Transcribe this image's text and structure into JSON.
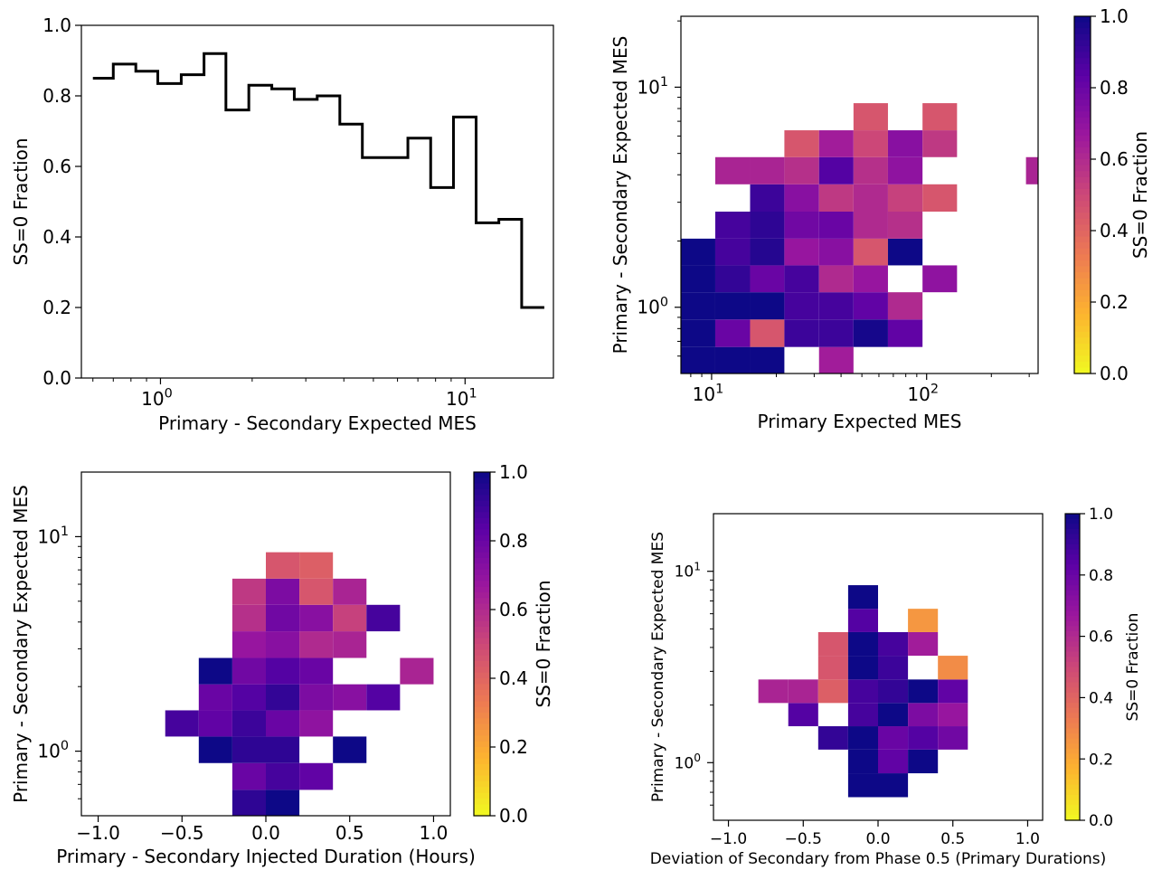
{
  "colorbar_colors": [
    "#f0f921",
    "#fdb42f",
    "#ed7953",
    "#cc4778",
    "#9c179e",
    "#5c01a6",
    "#0d0887"
  ],
  "chart_data": [
    {
      "id": "a",
      "type": "line",
      "step": true,
      "xscale": "log",
      "xlim": [
        0.55,
        19.5
      ],
      "ylim": [
        0,
        1
      ],
      "xlabel": "Primary - Secondary Expected MES",
      "ylabel": "SS=0 Fraction",
      "grid": false,
      "yticks": [
        "0.0",
        "0.2",
        "0.4",
        "0.6",
        "0.8",
        "1.0"
      ],
      "xticks": [
        {
          "base": "10",
          "exp": "0",
          "v": 1
        },
        {
          "base": "10",
          "exp": "1",
          "v": 10
        }
      ],
      "bin_edges": [
        0.6,
        0.7,
        0.83,
        0.98,
        1.17,
        1.39,
        1.64,
        1.95,
        2.32,
        2.75,
        3.27,
        3.88,
        4.6,
        5.47,
        6.49,
        7.71,
        9.16,
        10.87,
        12.91,
        15.34,
        18.2
      ],
      "values": [
        0.85,
        0.89,
        0.87,
        0.835,
        0.86,
        0.92,
        0.76,
        0.83,
        0.82,
        0.79,
        0.8,
        0.72,
        0.625,
        0.625,
        0.68,
        0.54,
        0.74,
        0.44,
        0.45,
        0.2
      ]
    },
    {
      "id": "b",
      "type": "heatmap",
      "xscale": "log",
      "yscale": "log",
      "xlim": [
        7.2,
        330
      ],
      "ylim": [
        0.5,
        21
      ],
      "xlabel": "Primary Expected MES",
      "ylabel": "Primary - Secondary Expected MES",
      "colorbar_label": "SS=0 Fraction",
      "clim": [
        0,
        1
      ],
      "colormap": "plasma",
      "colorbar_ticks": [
        "0.0",
        "0.2",
        "0.4",
        "0.6",
        "0.8",
        "1.0"
      ],
      "xticks": [
        {
          "base": "10",
          "exp": "1",
          "v": 10
        },
        {
          "base": "10",
          "exp": "2",
          "v": 100
        }
      ],
      "yticks": [
        {
          "base": "10",
          "exp": "0",
          "v": 1
        },
        {
          "base": "10",
          "exp": "1",
          "v": 10
        }
      ],
      "x_edges": [
        7.2,
        10.4,
        15.1,
        21.8,
        31.6,
        45.7,
        66.1,
        95.7,
        138.5,
        200.3,
        289.8,
        419
      ],
      "y_edges": [
        0.5,
        0.66,
        0.88,
        1.17,
        1.55,
        2.05,
        2.72,
        3.62,
        4.81,
        6.37,
        8.46,
        11.2,
        14.9,
        19.8
      ],
      "cells": [
        {
          "i": 0,
          "j": 0,
          "v": 1.0
        },
        {
          "i": 1,
          "j": 0,
          "v": 1.0
        },
        {
          "i": 2,
          "j": 0,
          "v": 1.0
        },
        {
          "i": 4,
          "j": 0,
          "v": 0.65
        },
        {
          "i": 0,
          "j": 1,
          "v": 1.0
        },
        {
          "i": 1,
          "j": 1,
          "v": 0.8
        },
        {
          "i": 2,
          "j": 1,
          "v": 0.45
        },
        {
          "i": 3,
          "j": 1,
          "v": 0.9
        },
        {
          "i": 4,
          "j": 1,
          "v": 0.9
        },
        {
          "i": 5,
          "j": 1,
          "v": 0.98
        },
        {
          "i": 6,
          "j": 1,
          "v": 0.82
        },
        {
          "i": 0,
          "j": 2,
          "v": 1.0
        },
        {
          "i": 1,
          "j": 2,
          "v": 1.0
        },
        {
          "i": 2,
          "j": 2,
          "v": 1.0
        },
        {
          "i": 3,
          "j": 2,
          "v": 0.88
        },
        {
          "i": 4,
          "j": 2,
          "v": 0.88
        },
        {
          "i": 5,
          "j": 2,
          "v": 0.82
        },
        {
          "i": 6,
          "j": 2,
          "v": 0.6
        },
        {
          "i": 0,
          "j": 3,
          "v": 1.0
        },
        {
          "i": 1,
          "j": 3,
          "v": 0.92
        },
        {
          "i": 2,
          "j": 3,
          "v": 0.8
        },
        {
          "i": 3,
          "j": 3,
          "v": 0.88
        },
        {
          "i": 4,
          "j": 3,
          "v": 0.6
        },
        {
          "i": 5,
          "j": 3,
          "v": 0.68
        },
        {
          "i": 7,
          "j": 3,
          "v": 0.7
        },
        {
          "i": 0,
          "j": 4,
          "v": 1.0
        },
        {
          "i": 1,
          "j": 4,
          "v": 0.88
        },
        {
          "i": 2,
          "j": 4,
          "v": 0.95
        },
        {
          "i": 3,
          "j": 4,
          "v": 0.68
        },
        {
          "i": 4,
          "j": 4,
          "v": 0.72
        },
        {
          "i": 5,
          "j": 4,
          "v": 0.45
        },
        {
          "i": 6,
          "j": 4,
          "v": 1.0
        },
        {
          "i": 1,
          "j": 5,
          "v": 0.88
        },
        {
          "i": 2,
          "j": 5,
          "v": 0.93
        },
        {
          "i": 3,
          "j": 5,
          "v": 0.78
        },
        {
          "i": 4,
          "j": 5,
          "v": 0.8
        },
        {
          "i": 5,
          "j": 5,
          "v": 0.6
        },
        {
          "i": 6,
          "j": 5,
          "v": 0.58
        },
        {
          "i": 2,
          "j": 6,
          "v": 0.9
        },
        {
          "i": 3,
          "j": 6,
          "v": 0.72
        },
        {
          "i": 4,
          "j": 6,
          "v": 0.55
        },
        {
          "i": 5,
          "j": 6,
          "v": 0.6
        },
        {
          "i": 6,
          "j": 6,
          "v": 0.52
        },
        {
          "i": 7,
          "j": 6,
          "v": 0.45
        },
        {
          "i": 1,
          "j": 7,
          "v": 0.62
        },
        {
          "i": 2,
          "j": 7,
          "v": 0.62
        },
        {
          "i": 3,
          "j": 7,
          "v": 0.58
        },
        {
          "i": 4,
          "j": 7,
          "v": 0.85
        },
        {
          "i": 5,
          "j": 7,
          "v": 0.58
        },
        {
          "i": 6,
          "j": 7,
          "v": 0.7
        },
        {
          "i": 10,
          "j": 7,
          "v": 0.62
        },
        {
          "i": 3,
          "j": 8,
          "v": 0.45
        },
        {
          "i": 4,
          "j": 8,
          "v": 0.65
        },
        {
          "i": 5,
          "j": 8,
          "v": 0.5
        },
        {
          "i": 6,
          "j": 8,
          "v": 0.72
        },
        {
          "i": 7,
          "j": 8,
          "v": 0.55
        },
        {
          "i": 5,
          "j": 9,
          "v": 0.45
        },
        {
          "i": 7,
          "j": 9,
          "v": 0.45
        }
      ]
    },
    {
      "id": "c",
      "type": "heatmap",
      "xscale": "linear",
      "yscale": "log",
      "xlim": [
        -1.1,
        1.1
      ],
      "ylim": [
        0.5,
        20
      ],
      "xlabel": "Primary - Secondary Injected Duration (Hours)",
      "ylabel": "Primary - Secondary Expected MES",
      "colorbar_label": "SS=0 Fraction",
      "clim": [
        0,
        1
      ],
      "colormap": "plasma",
      "colorbar_ticks": [
        "0.0",
        "0.2",
        "0.4",
        "0.6",
        "0.8",
        "1.0"
      ],
      "xticks": [
        "-1.0",
        "-0.5",
        "0.0",
        "0.5",
        "1.0"
      ],
      "yticks": [
        {
          "base": "10",
          "exp": "0",
          "v": 1
        },
        {
          "base": "10",
          "exp": "1",
          "v": 10
        }
      ],
      "x_edges": [
        -0.6,
        -0.4,
        -0.2,
        0.0,
        0.2,
        0.4,
        0.6,
        0.8,
        1.0
      ],
      "y_edges": [
        0.5,
        0.66,
        0.88,
        1.17,
        1.55,
        2.05,
        2.72,
        3.62,
        4.81,
        6.37,
        8.46,
        11.2,
        14.9,
        19.8
      ],
      "cells": [
        {
          "i": 2,
          "j": 0,
          "v": 0.93
        },
        {
          "i": 3,
          "j": 0,
          "v": 1.0
        },
        {
          "i": 2,
          "j": 1,
          "v": 0.8
        },
        {
          "i": 3,
          "j": 1,
          "v": 0.88
        },
        {
          "i": 4,
          "j": 1,
          "v": 0.82
        },
        {
          "i": 1,
          "j": 2,
          "v": 1.0
        },
        {
          "i": 2,
          "j": 2,
          "v": 0.93
        },
        {
          "i": 3,
          "j": 2,
          "v": 0.93
        },
        {
          "i": 5,
          "j": 2,
          "v": 1.0
        },
        {
          "i": 0,
          "j": 3,
          "v": 0.88
        },
        {
          "i": 1,
          "j": 3,
          "v": 0.82
        },
        {
          "i": 2,
          "j": 3,
          "v": 0.9
        },
        {
          "i": 3,
          "j": 3,
          "v": 0.8
        },
        {
          "i": 4,
          "j": 3,
          "v": 0.7
        },
        {
          "i": 1,
          "j": 4,
          "v": 0.8
        },
        {
          "i": 2,
          "j": 4,
          "v": 0.85
        },
        {
          "i": 3,
          "j": 4,
          "v": 0.92
        },
        {
          "i": 4,
          "j": 4,
          "v": 0.75
        },
        {
          "i": 5,
          "j": 4,
          "v": 0.72
        },
        {
          "i": 6,
          "j": 4,
          "v": 0.85
        },
        {
          "i": 1,
          "j": 5,
          "v": 1.0
        },
        {
          "i": 2,
          "j": 5,
          "v": 0.78
        },
        {
          "i": 3,
          "j": 5,
          "v": 0.85
        },
        {
          "i": 4,
          "j": 5,
          "v": 0.8
        },
        {
          "i": 7,
          "j": 5,
          "v": 0.62
        },
        {
          "i": 2,
          "j": 6,
          "v": 0.68
        },
        {
          "i": 3,
          "j": 6,
          "v": 0.72
        },
        {
          "i": 4,
          "j": 6,
          "v": 0.6
        },
        {
          "i": 5,
          "j": 6,
          "v": 0.62
        },
        {
          "i": 2,
          "j": 7,
          "v": 0.58
        },
        {
          "i": 3,
          "j": 7,
          "v": 0.78
        },
        {
          "i": 4,
          "j": 7,
          "v": 0.72
        },
        {
          "i": 5,
          "j": 7,
          "v": 0.52
        },
        {
          "i": 6,
          "j": 7,
          "v": 0.88
        },
        {
          "i": 2,
          "j": 8,
          "v": 0.55
        },
        {
          "i": 3,
          "j": 8,
          "v": 0.75
        },
        {
          "i": 4,
          "j": 8,
          "v": 0.45
        },
        {
          "i": 5,
          "j": 8,
          "v": 0.62
        },
        {
          "i": 3,
          "j": 9,
          "v": 0.45
        },
        {
          "i": 4,
          "j": 9,
          "v": 0.42
        }
      ]
    },
    {
      "id": "d",
      "type": "heatmap",
      "xscale": "linear",
      "yscale": "log",
      "xlim": [
        -1.1,
        1.1
      ],
      "ylim": [
        0.5,
        20
      ],
      "xlabel": "Deviation of Secondary from Phase 0.5 (Primary Durations)",
      "ylabel": "Primary - Secondary Expected MES",
      "colorbar_label": "SS=0 Fraction",
      "clim": [
        0,
        1
      ],
      "colormap": "plasma",
      "colorbar_ticks": [
        "0.0",
        "0.2",
        "0.4",
        "0.6",
        "0.8",
        "1.0"
      ],
      "xticks": [
        "-1.0",
        "-0.5",
        "0.0",
        "0.5",
        "1.0"
      ],
      "yticks": [
        {
          "base": "10",
          "exp": "0",
          "v": 1
        },
        {
          "base": "10",
          "exp": "1",
          "v": 10
        }
      ],
      "x_edges": [
        -0.8,
        -0.6,
        -0.4,
        -0.2,
        0.0,
        0.2,
        0.4,
        0.6
      ],
      "y_edges": [
        0.5,
        0.66,
        0.88,
        1.17,
        1.55,
        2.05,
        2.72,
        3.62,
        4.81,
        6.37,
        8.46,
        11.2,
        14.9,
        19.8
      ],
      "cells": [
        {
          "i": 3,
          "j": 1,
          "v": 1.0
        },
        {
          "i": 4,
          "j": 1,
          "v": 1.0
        },
        {
          "i": 3,
          "j": 2,
          "v": 1.0
        },
        {
          "i": 4,
          "j": 2,
          "v": 0.82
        },
        {
          "i": 5,
          "j": 2,
          "v": 1.0
        },
        {
          "i": 2,
          "j": 3,
          "v": 0.92
        },
        {
          "i": 3,
          "j": 3,
          "v": 1.0
        },
        {
          "i": 4,
          "j": 3,
          "v": 0.8
        },
        {
          "i": 5,
          "j": 3,
          "v": 0.85
        },
        {
          "i": 6,
          "j": 3,
          "v": 0.78
        },
        {
          "i": 1,
          "j": 4,
          "v": 0.85
        },
        {
          "i": 3,
          "j": 4,
          "v": 0.88
        },
        {
          "i": 4,
          "j": 4,
          "v": 1.0
        },
        {
          "i": 5,
          "j": 4,
          "v": 0.75
        },
        {
          "i": 6,
          "j": 4,
          "v": 0.68
        },
        {
          "i": 0,
          "j": 5,
          "v": 0.62
        },
        {
          "i": 1,
          "j": 5,
          "v": 0.62
        },
        {
          "i": 2,
          "j": 5,
          "v": 0.42
        },
        {
          "i": 3,
          "j": 5,
          "v": 0.88
        },
        {
          "i": 4,
          "j": 5,
          "v": 0.92
        },
        {
          "i": 5,
          "j": 5,
          "v": 1.0
        },
        {
          "i": 6,
          "j": 5,
          "v": 0.82
        },
        {
          "i": 2,
          "j": 6,
          "v": 0.45
        },
        {
          "i": 3,
          "j": 6,
          "v": 1.0
        },
        {
          "i": 4,
          "j": 6,
          "v": 0.9
        },
        {
          "i": 6,
          "j": 6,
          "v": 0.28
        },
        {
          "i": 2,
          "j": 7,
          "v": 0.45
        },
        {
          "i": 3,
          "j": 7,
          "v": 1.0
        },
        {
          "i": 4,
          "j": 7,
          "v": 0.88
        },
        {
          "i": 5,
          "j": 7,
          "v": 0.65
        },
        {
          "i": 3,
          "j": 8,
          "v": 0.85
        },
        {
          "i": 5,
          "j": 8,
          "v": 0.25
        },
        {
          "i": 3,
          "j": 9,
          "v": 1.0
        }
      ]
    }
  ]
}
